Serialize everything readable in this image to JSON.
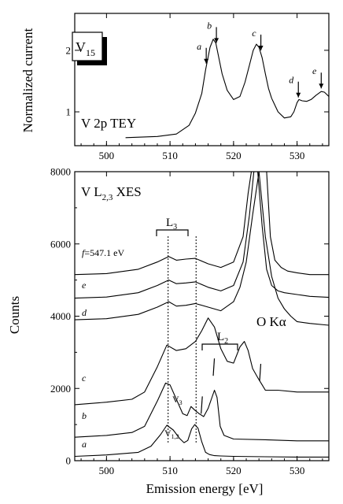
{
  "chart_data": [
    {
      "type": "line",
      "ylabel": "Normalized current",
      "xlim": [
        495,
        535
      ],
      "ylim": [
        0.45,
        2.6
      ],
      "xticks": [
        "500",
        "510",
        "520",
        "530"
      ],
      "yticks": [
        "1",
        "2"
      ],
      "inset_label": {
        "main": "V",
        "sub": "15"
      },
      "spectrum_label": "V 2p TEY",
      "series": [
        {
          "x": [
            503,
            508,
            511,
            513,
            514,
            515,
            515.6,
            516.3,
            516.8,
            517.2,
            517.6,
            518.2,
            519,
            520,
            521,
            521.8,
            522.5,
            523.1,
            523.6,
            524,
            524.5,
            525,
            525.5,
            526,
            527,
            528,
            529,
            529.5,
            530,
            530.3,
            530.8,
            531.5,
            532.2,
            533,
            533.8,
            534.3,
            535
          ],
          "y": [
            0.58,
            0.6,
            0.64,
            0.78,
            0.98,
            1.3,
            1.68,
            2.05,
            2.18,
            2.12,
            1.92,
            1.62,
            1.35,
            1.2,
            1.25,
            1.48,
            1.76,
            2.0,
            2.1,
            2.05,
            1.88,
            1.62,
            1.38,
            1.22,
            1.0,
            0.9,
            0.92,
            1.0,
            1.15,
            1.2,
            1.18,
            1.17,
            1.2,
            1.27,
            1.33,
            1.32,
            1.25
          ]
        }
      ],
      "annotations": [
        {
          "label": "a",
          "x": 515.7
        },
        {
          "label": "b",
          "x": 517.3
        },
        {
          "label": "c",
          "x": 524.3
        },
        {
          "label": "d",
          "x": 530.2
        },
        {
          "label": "e",
          "x": 533.8
        }
      ]
    },
    {
      "type": "line",
      "xlabel": "Emission energy [eV]",
      "ylabel": "Counts",
      "xlim": [
        495,
        535
      ],
      "ylim": [
        0,
        8000
      ],
      "xticks": [
        "500",
        "510",
        "520",
        "530"
      ],
      "yticks": [
        "0",
        "2000",
        "4000",
        "6000",
        "8000"
      ],
      "spectrum_label": "V L",
      "spectrum_label_sub": "2,3",
      "spectrum_label_suffix": " XES",
      "l3_label": "L",
      "l3_sub": "3",
      "l2_label": "L",
      "l2_sub": "2",
      "oka_label": "O Kα",
      "v3_label": "V",
      "v3_sub": "3",
      "v12_label": "V",
      "v12_sub": "1,2",
      "guides_x": [
        509.7,
        514.1
      ],
      "series": [
        {
          "name": "a",
          "x": [
            495,
            500,
            505,
            507,
            508.5,
            509.5,
            510.5,
            511.5,
            512.2,
            512.8,
            513.4,
            513.9,
            514.4,
            515,
            515.6,
            516.2,
            517,
            518,
            520,
            525,
            530,
            535
          ],
          "y": [
            120,
            160,
            230,
            400,
            720,
            980,
            850,
            620,
            500,
            560,
            880,
            1000,
            900,
            520,
            230,
            170,
            140,
            130,
            120,
            110,
            100,
            100
          ]
        },
        {
          "name": "b",
          "x": [
            495,
            500,
            504,
            506,
            508,
            509.3,
            510,
            511,
            512,
            512.7,
            513.3,
            513.9,
            514.6,
            515.3,
            516,
            516.5,
            517,
            517.4,
            517.9,
            518.5,
            520,
            525,
            530,
            535
          ],
          "y": [
            650,
            700,
            780,
            950,
            1650,
            2150,
            2100,
            1700,
            1300,
            1250,
            1500,
            1400,
            1300,
            1220,
            1450,
            1700,
            1950,
            1750,
            950,
            700,
            600,
            580,
            550,
            550
          ]
        },
        {
          "name": "c",
          "x": [
            495,
            500,
            504,
            506,
            508,
            509.5,
            511,
            512.5,
            514,
            515,
            516,
            517,
            518,
            519,
            520,
            521,
            521.7,
            522.3,
            523,
            523.8,
            524.5,
            525,
            527,
            530,
            535
          ],
          "y": [
            1550,
            1620,
            1700,
            1900,
            2600,
            3200,
            3050,
            3100,
            3300,
            3600,
            3950,
            3700,
            3100,
            2750,
            2700,
            3150,
            3300,
            3050,
            2550,
            2300,
            2100,
            1950,
            1950,
            1900,
            1900
          ]
        },
        {
          "name": "d",
          "x": [
            495,
            500,
            505,
            508,
            509.8,
            511,
            512.5,
            514,
            516,
            518,
            520,
            521,
            522,
            523,
            524,
            525,
            526,
            527,
            528,
            529,
            530,
            532,
            535
          ],
          "y": [
            3900,
            3930,
            4050,
            4250,
            4400,
            4280,
            4300,
            4350,
            4250,
            4150,
            4400,
            4800,
            5500,
            6800,
            8000,
            6200,
            5100,
            4500,
            4200,
            4000,
            3850,
            3800,
            3750
          ]
        },
        {
          "name": "e",
          "x": [
            495,
            500,
            505,
            508,
            509.8,
            511,
            512.5,
            514,
            516,
            518,
            520,
            521.5,
            522.5,
            523.2,
            523.8,
            524.5,
            525.2,
            526,
            527,
            528,
            530,
            532,
            535
          ],
          "y": [
            4500,
            4530,
            4650,
            4850,
            5000,
            4900,
            4920,
            4950,
            4800,
            4700,
            4850,
            5500,
            6800,
            8000,
            8000,
            6500,
            5300,
            4850,
            4700,
            4650,
            4600,
            4550,
            4520
          ]
        },
        {
          "name": "f=547.1 eV",
          "x": [
            495,
            500,
            505,
            508,
            509.8,
            511,
            512.5,
            514,
            516,
            518,
            520,
            521.5,
            522.3,
            522.8,
            523.3,
            524,
            525.2,
            525.8,
            526.5,
            527.5,
            528.5,
            530,
            532,
            535
          ],
          "y": [
            5150,
            5180,
            5300,
            5500,
            5650,
            5550,
            5580,
            5600,
            5450,
            5350,
            5500,
            6200,
            7400,
            8000,
            8000,
            8000,
            8000,
            6200,
            5550,
            5350,
            5250,
            5200,
            5150,
            5150
          ]
        }
      ],
      "series_labels": [
        "a",
        "b",
        "c",
        "d",
        "e",
        "f",
        "=547.1 eV"
      ],
      "markers": [
        {
          "x": 514.9,
          "y": 1300
        },
        {
          "x": 516.8,
          "y": 2350
        },
        {
          "x": 524.1,
          "y": 2200
        }
      ]
    }
  ]
}
